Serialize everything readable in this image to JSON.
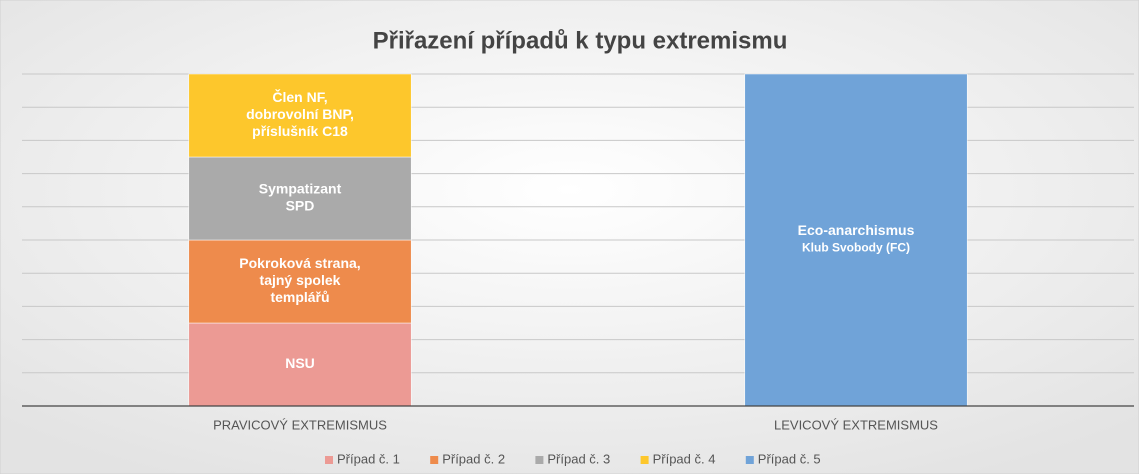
{
  "chart_data": {
    "type": "stacked_bar",
    "title": "Přiřazení případů k typu extremismu",
    "categories": [
      "PRAVICOVÝ EXTREMISMUS",
      "LEVICOVÝ EXTREMISMUS"
    ],
    "series": [
      {
        "name": "Případ č. 1",
        "color": "#ec9a94",
        "values": [
          1,
          0
        ],
        "labels": [
          [
            "NSU"
          ],
          null
        ]
      },
      {
        "name": "Případ č. 2",
        "color": "#ee8b4c",
        "values": [
          1,
          0
        ],
        "labels": [
          [
            "Pokroková strana,",
            "tajný spolek",
            "templářů"
          ],
          null
        ]
      },
      {
        "name": "Případ č. 3",
        "color": "#aaaaaa",
        "values": [
          1,
          0
        ],
        "labels": [
          [
            "Sympatizant",
            "SPD"
          ],
          null
        ]
      },
      {
        "name": "Případ č. 4",
        "color": "#fdc72c",
        "values": [
          1,
          0
        ],
        "labels": [
          [
            "Člen NF,",
            "dobrovolní BNP,",
            "příslušník C18"
          ],
          null
        ]
      },
      {
        "name": "Případ č. 5",
        "color": "#70a3d8",
        "values": [
          0,
          4
        ],
        "labels": [
          null,
          [
            "Eco-anarchismus",
            "Klub Svobody (FC)"
          ]
        ]
      }
    ],
    "ylim": [
      0,
      4
    ],
    "yticks": [
      0,
      0.4,
      0.8,
      1.2,
      1.6,
      2,
      2.4,
      2.8,
      3.2,
      3.6,
      4
    ],
    "grid": true,
    "legend": "bottom"
  }
}
